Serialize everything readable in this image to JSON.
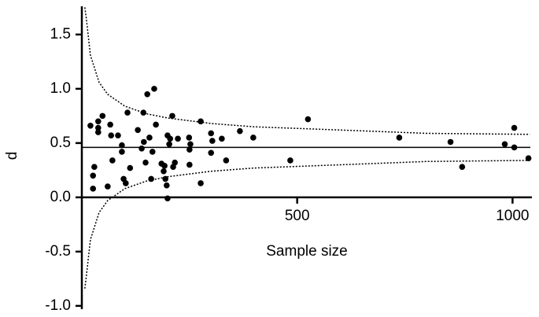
{
  "chart_data": {
    "type": "scatter",
    "x_label": "Sample size",
    "y_label": "d",
    "x": [
      20,
      26,
      26,
      29,
      38,
      38,
      38,
      48,
      60,
      66,
      68,
      71,
      84,
      93,
      93,
      97,
      102,
      106,
      112,
      130,
      139,
      143,
      144,
      148,
      152,
      157,
      161,
      164,
      168,
      172,
      185,
      190,
      192,
      194,
      197,
      199,
      199,
      203,
      205,
      210,
      212,
      216,
      223,
      249,
      250,
      250,
      252,
      276,
      276,
      300,
      303,
      300,
      325,
      335,
      367,
      398,
      484,
      525,
      737,
      856,
      883,
      982,
      1004,
      1004,
      1037
    ],
    "values": [
      0.66,
      0.2,
      0.08,
      0.28,
      0.7,
      0.64,
      0.6,
      0.75,
      0.1,
      0.67,
      0.57,
      0.34,
      0.57,
      0.48,
      0.42,
      0.17,
      0.13,
      0.78,
      0.27,
      0.62,
      0.45,
      0.78,
      0.51,
      0.32,
      0.95,
      0.55,
      0.17,
      0.42,
      1.0,
      0.67,
      0.31,
      0.24,
      0.29,
      0.17,
      0.11,
      0.57,
      -0.01,
      0.49,
      0.54,
      0.75,
      0.28,
      0.32,
      0.54,
      0.55,
      0.3,
      0.44,
      0.49,
      0.7,
      0.13,
      0.59,
      0.52,
      0.41,
      0.54,
      0.34,
      0.61,
      0.55,
      0.34,
      0.72,
      0.55,
      0.51,
      0.28,
      0.49,
      0.64,
      0.46,
      0.36
    ],
    "color": "#000000",
    "reference_line": 0.46,
    "curves": [
      {
        "x": [
          7,
          10,
          20,
          40,
          60,
          100,
          150,
          200,
          300,
          400,
          600,
          800,
          1040
        ],
        "values": [
          1.75,
          1.66,
          1.31,
          1.06,
          0.95,
          0.84,
          0.77,
          0.73,
          0.68,
          0.65,
          0.62,
          0.59,
          0.58
        ]
      },
      {
        "x": [
          7,
          10,
          20,
          40,
          60,
          100,
          150,
          200,
          300,
          400,
          600,
          800,
          1040
        ],
        "values": [
          -0.84,
          -0.74,
          -0.39,
          -0.14,
          -0.03,
          0.08,
          0.15,
          0.19,
          0.24,
          0.27,
          0.3,
          0.33,
          0.34
        ]
      }
    ],
    "xlim": [
      0,
      1045
    ],
    "ylim": [
      -1.03,
      1.76
    ],
    "xticks": [
      500,
      1000
    ],
    "yticks": [
      1.5,
      {
        "value": 1.0,
        "label": "1.0"
      },
      0.5,
      {
        "value": 0.0,
        "label": "0.0"
      },
      -0.5,
      {
        "value": -1.0,
        "label": "-1.0"
      }
    ]
  }
}
